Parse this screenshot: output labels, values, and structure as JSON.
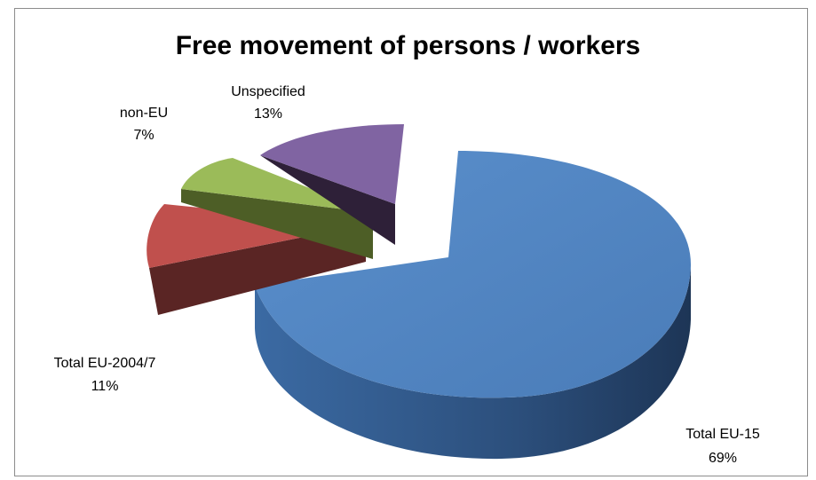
{
  "chart_data": {
    "type": "pie",
    "title": "Free movement of persons / workers",
    "slices": [
      {
        "name": "Total EU-15",
        "value": 69,
        "label": "69%",
        "color": "#4f81bd"
      },
      {
        "name": "Total EU-2004/7",
        "value": 11,
        "label": "11%",
        "color": "#c0504d"
      },
      {
        "name": "non-EU",
        "value": 7,
        "label": "7%",
        "color": "#9bbb59"
      },
      {
        "name": "Unspecified",
        "value": 13,
        "label": "13%",
        "color": "#8064a2"
      }
    ],
    "legend": "none",
    "style": "3d exploded pie"
  }
}
